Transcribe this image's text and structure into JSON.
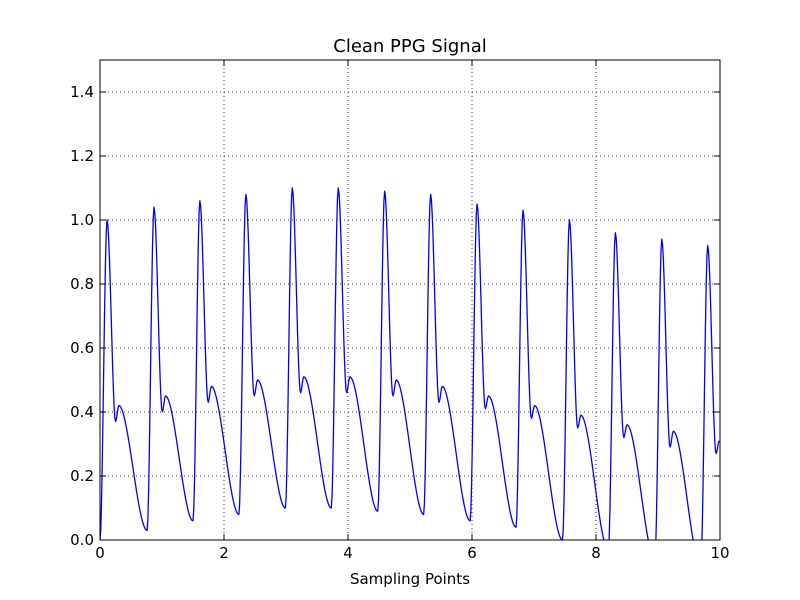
{
  "chart_data": {
    "type": "line",
    "title": "Clean PPG Signal",
    "xlabel": "Sampling Points",
    "ylabel": "",
    "xlim": [
      0,
      10
    ],
    "ylim": [
      0,
      1.5
    ],
    "x_ticks": [
      0,
      2,
      4,
      6,
      8,
      10
    ],
    "x_tick_labels": [
      "0",
      "2",
      "4",
      "6",
      "8",
      "10"
    ],
    "y_ticks": [
      0.0,
      0.2,
      0.4,
      0.6,
      0.8,
      1.0,
      1.2,
      1.4
    ],
    "y_tick_labels": [
      "0.0",
      "0.2",
      "0.4",
      "0.6",
      "0.8",
      "1.0",
      "1.2",
      "1.4"
    ],
    "grid": true,
    "legend": "none",
    "color": "#0000ff",
    "beat_period": 0.745,
    "beats": [
      {
        "foot": 0.0,
        "peak": 1.0,
        "trough": 0.37,
        "notch": 0.42,
        "end": 0.03
      },
      {
        "foot": 0.76,
        "peak": 1.04,
        "trough": 0.4,
        "notch": 0.45,
        "end": 0.06
      },
      {
        "foot": 1.5,
        "peak": 1.06,
        "trough": 0.43,
        "notch": 0.48,
        "end": 0.08
      },
      {
        "foot": 2.24,
        "peak": 1.08,
        "trough": 0.45,
        "notch": 0.5,
        "end": 0.1
      },
      {
        "foot": 2.99,
        "peak": 1.1,
        "trough": 0.46,
        "notch": 0.51,
        "end": 0.1
      },
      {
        "foot": 3.73,
        "peak": 1.1,
        "trough": 0.46,
        "notch": 0.51,
        "end": 0.09
      },
      {
        "foot": 4.48,
        "peak": 1.09,
        "trough": 0.45,
        "notch": 0.5,
        "end": 0.08
      },
      {
        "foot": 5.22,
        "peak": 1.08,
        "trough": 0.43,
        "notch": 0.48,
        "end": 0.06
      },
      {
        "foot": 5.97,
        "peak": 1.05,
        "trough": 0.41,
        "notch": 0.45,
        "end": 0.04
      },
      {
        "foot": 6.71,
        "peak": 1.03,
        "trough": 0.38,
        "notch": 0.42,
        "end": 0.0
      },
      {
        "foot": 7.46,
        "peak": 1.0,
        "trough": 0.35,
        "notch": 0.39,
        "end": -0.03
      },
      {
        "foot": 8.2,
        "peak": 0.96,
        "trough": 0.32,
        "notch": 0.36,
        "end": -0.06
      },
      {
        "foot": 8.95,
        "peak": 0.94,
        "trough": 0.29,
        "notch": 0.34,
        "end": -0.08
      },
      {
        "foot": 9.69,
        "peak": 0.92,
        "trough": 0.27,
        "notch": 0.31,
        "end": -0.1
      }
    ]
  }
}
